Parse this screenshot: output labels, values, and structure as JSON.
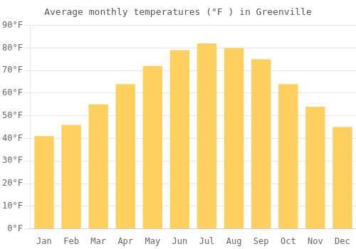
{
  "chart_data": {
    "type": "bar",
    "title": "Average monthly temperatures (°F ) in Greenville",
    "categories": [
      "Jan",
      "Feb",
      "Mar",
      "Apr",
      "May",
      "Jun",
      "Jul",
      "Aug",
      "Sep",
      "Oct",
      "Nov",
      "Dec"
    ],
    "values": [
      41,
      46,
      55,
      64,
      72,
      79,
      82,
      80,
      75,
      64,
      54,
      45
    ],
    "color": "#FFD060",
    "ylim": [
      0,
      90
    ],
    "yticks": [
      {
        "value": 0,
        "label": "0°F"
      },
      {
        "value": 10,
        "label": "10°F"
      },
      {
        "value": 20,
        "label": "20°F"
      },
      {
        "value": 30,
        "label": "30°F"
      },
      {
        "value": 40,
        "label": "40°F"
      },
      {
        "value": 50,
        "label": "50°F"
      },
      {
        "value": 60,
        "label": "60°F"
      },
      {
        "value": 70,
        "label": "70°F"
      },
      {
        "value": 80,
        "label": "80°F"
      },
      {
        "value": 90,
        "label": "90°F"
      }
    ],
    "grid": true
  }
}
